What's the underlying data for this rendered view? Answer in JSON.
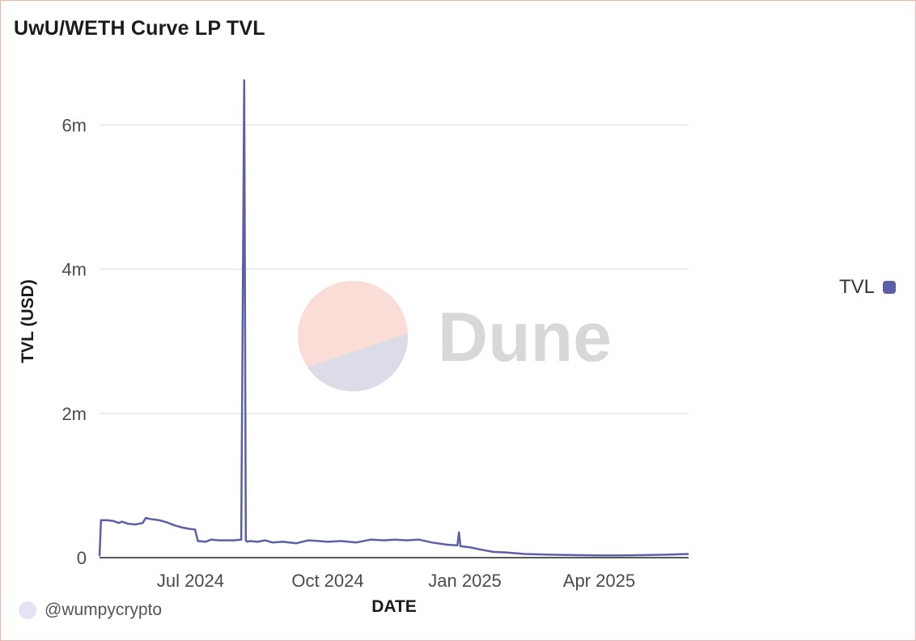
{
  "title": "UwU/WETH Curve LP TVL",
  "legend": {
    "label": "TVL",
    "color": "#5d5ea8"
  },
  "attribution": "@wumpycrypto",
  "watermark": "Dune",
  "chart_data": {
    "type": "line",
    "title": "UwU/WETH Curve LP TVL",
    "xlabel": "DATE",
    "ylabel": "TVL (USD)",
    "xlim": [
      "2024-05-01",
      "2025-05-31"
    ],
    "ylim": [
      0,
      6600000
    ],
    "grid": true,
    "legend_position": "right",
    "x_ticks": [
      {
        "date": "2024-07-01",
        "label": "Jul 2024"
      },
      {
        "date": "2024-10-01",
        "label": "Oct 2024"
      },
      {
        "date": "2025-01-01",
        "label": "Jan 2025"
      },
      {
        "date": "2025-04-01",
        "label": "Apr 2025"
      }
    ],
    "y_ticks": [
      {
        "value": 0,
        "label": "0"
      },
      {
        "value": 2000000,
        "label": "2m"
      },
      {
        "value": 4000000,
        "label": "4m"
      },
      {
        "value": 6000000,
        "label": "6m"
      }
    ],
    "series": [
      {
        "name": "TVL",
        "color": "#5d5ea8",
        "x": [
          "2024-05-01",
          "2024-05-02",
          "2024-05-06",
          "2024-05-10",
          "2024-05-14",
          "2024-05-16",
          "2024-05-20",
          "2024-05-25",
          "2024-05-30",
          "2024-06-01",
          "2024-06-03",
          "2024-06-06",
          "2024-06-10",
          "2024-06-15",
          "2024-06-20",
          "2024-06-25",
          "2024-06-30",
          "2024-07-04",
          "2024-07-06",
          "2024-07-11",
          "2024-07-15",
          "2024-07-20",
          "2024-07-25",
          "2024-07-30",
          "2024-08-04",
          "2024-08-06",
          "2024-08-06",
          "2024-08-08",
          "2024-08-10",
          "2024-08-15",
          "2024-08-20",
          "2024-08-25",
          "2024-09-01",
          "2024-09-10",
          "2024-09-18",
          "2024-09-25",
          "2024-10-01",
          "2024-10-10",
          "2024-10-20",
          "2024-10-30",
          "2024-11-08",
          "2024-11-15",
          "2024-11-23",
          "2024-12-01",
          "2024-12-10",
          "2024-12-20",
          "2024-12-27",
          "2024-12-28",
          "2024-12-29",
          "2025-01-05",
          "2025-01-12",
          "2025-01-20",
          "2025-01-30",
          "2025-02-10",
          "2025-02-28",
          "2025-03-15",
          "2025-04-01",
          "2025-04-15",
          "2025-05-01",
          "2025-05-15",
          "2025-05-31"
        ],
        "y": [
          20000,
          520000,
          520000,
          510000,
          480000,
          500000,
          470000,
          460000,
          480000,
          550000,
          540000,
          530000,
          520000,
          490000,
          450000,
          420000,
          400000,
          390000,
          230000,
          220000,
          250000,
          240000,
          240000,
          240000,
          250000,
          6620000,
          240000,
          220000,
          230000,
          220000,
          240000,
          210000,
          220000,
          200000,
          240000,
          230000,
          220000,
          230000,
          210000,
          250000,
          240000,
          250000,
          240000,
          250000,
          210000,
          180000,
          170000,
          350000,
          160000,
          140000,
          110000,
          80000,
          70000,
          50000,
          40000,
          35000,
          30000,
          30000,
          35000,
          40000,
          50000
        ]
      }
    ]
  }
}
